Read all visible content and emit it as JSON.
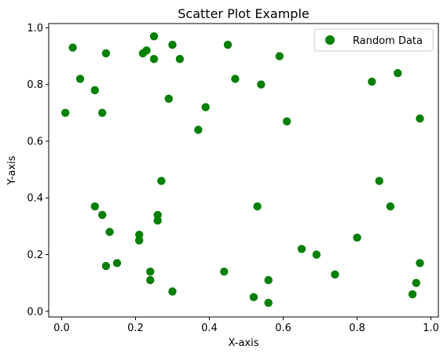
{
  "chart_data": {
    "type": "scatter",
    "title": "Scatter Plot Example",
    "xlabel": "X-axis",
    "ylabel": "Y-axis",
    "xlim": [
      -0.035,
      1.02
    ],
    "ylim": [
      -0.02,
      1.015
    ],
    "xticks": [
      "0.0",
      "0.2",
      "0.4",
      "0.6",
      "0.8",
      "1.0"
    ],
    "yticks": [
      "0.0",
      "0.2",
      "0.4",
      "0.6",
      "0.8",
      "1.0"
    ],
    "grid": false,
    "legend_position": "top-right",
    "series": [
      {
        "name": "Random Data",
        "color": "#008000",
        "points": [
          [
            0.01,
            0.7
          ],
          [
            0.03,
            0.93
          ],
          [
            0.05,
            0.82
          ],
          [
            0.09,
            0.78
          ],
          [
            0.11,
            0.7
          ],
          [
            0.12,
            0.91
          ],
          [
            0.09,
            0.37
          ],
          [
            0.11,
            0.34
          ],
          [
            0.13,
            0.28
          ],
          [
            0.12,
            0.16
          ],
          [
            0.15,
            0.17
          ],
          [
            0.22,
            0.91
          ],
          [
            0.23,
            0.92
          ],
          [
            0.25,
            0.89
          ],
          [
            0.25,
            0.97
          ],
          [
            0.3,
            0.94
          ],
          [
            0.32,
            0.89
          ],
          [
            0.29,
            0.75
          ],
          [
            0.39,
            0.72
          ],
          [
            0.37,
            0.64
          ],
          [
            0.27,
            0.46
          ],
          [
            0.26,
            0.34
          ],
          [
            0.26,
            0.32
          ],
          [
            0.21,
            0.27
          ],
          [
            0.21,
            0.25
          ],
          [
            0.24,
            0.14
          ],
          [
            0.24,
            0.11
          ],
          [
            0.3,
            0.07
          ],
          [
            0.45,
            0.94
          ],
          [
            0.47,
            0.82
          ],
          [
            0.54,
            0.8
          ],
          [
            0.59,
            0.9
          ],
          [
            0.61,
            0.67
          ],
          [
            0.53,
            0.37
          ],
          [
            0.44,
            0.14
          ],
          [
            0.52,
            0.05
          ],
          [
            0.56,
            0.11
          ],
          [
            0.56,
            0.03
          ],
          [
            0.65,
            0.22
          ],
          [
            0.69,
            0.2
          ],
          [
            0.74,
            0.13
          ],
          [
            0.8,
            0.26
          ],
          [
            0.84,
            0.81
          ],
          [
            0.91,
            0.84
          ],
          [
            0.86,
            0.46
          ],
          [
            0.89,
            0.37
          ],
          [
            0.97,
            0.68
          ],
          [
            0.97,
            0.17
          ],
          [
            0.96,
            0.1
          ],
          [
            0.95,
            0.06
          ]
        ]
      }
    ]
  }
}
